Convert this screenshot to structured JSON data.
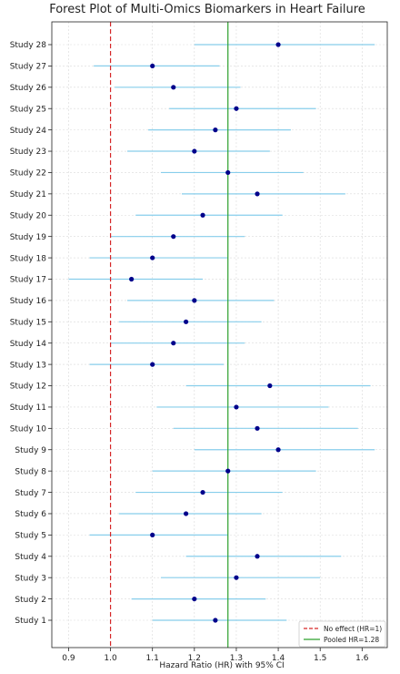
{
  "chart_data": {
    "type": "forest",
    "title": "Forest Plot of Multi-Omics Biomarkers in Heart Failure",
    "xlabel": "Hazard Ratio (HR) with 95% CI",
    "ylabel": "",
    "xlim": [
      0.86,
      1.66
    ],
    "xticks": [
      0.9,
      1.0,
      1.1,
      1.2,
      1.3,
      1.4,
      1.5,
      1.6
    ],
    "xtick_labels": [
      "0.9",
      "1.0",
      "1.1",
      "1.2",
      "1.3",
      "1.4",
      "1.5",
      "1.6"
    ],
    "grid": true,
    "legend_position": "bottom-right",
    "reference_lines": [
      {
        "label": "No effect (HR=1)",
        "x": 1.0,
        "style": "dashed",
        "color": "#d62728"
      },
      {
        "label": "Pooled HR=1.28",
        "x": 1.28,
        "style": "solid",
        "color": "#2ca02c"
      }
    ],
    "studies": [
      {
        "label": "Study 1",
        "hr": 1.25,
        "lower": 1.1,
        "upper": 1.42
      },
      {
        "label": "Study 2",
        "hr": 1.2,
        "lower": 1.05,
        "upper": 1.37
      },
      {
        "label": "Study 3",
        "hr": 1.3,
        "lower": 1.12,
        "upper": 1.5
      },
      {
        "label": "Study 4",
        "hr": 1.35,
        "lower": 1.18,
        "upper": 1.55
      },
      {
        "label": "Study 5",
        "hr": 1.1,
        "lower": 0.95,
        "upper": 1.28
      },
      {
        "label": "Study 6",
        "hr": 1.18,
        "lower": 1.02,
        "upper": 1.36
      },
      {
        "label": "Study 7",
        "hr": 1.22,
        "lower": 1.06,
        "upper": 1.41
      },
      {
        "label": "Study 8",
        "hr": 1.28,
        "lower": 1.1,
        "upper": 1.49
      },
      {
        "label": "Study 9",
        "hr": 1.4,
        "lower": 1.2,
        "upper": 1.63
      },
      {
        "label": "Study 10",
        "hr": 1.35,
        "lower": 1.15,
        "upper": 1.59
      },
      {
        "label": "Study 11",
        "hr": 1.3,
        "lower": 1.11,
        "upper": 1.52
      },
      {
        "label": "Study 12",
        "hr": 1.38,
        "lower": 1.18,
        "upper": 1.62
      },
      {
        "label": "Study 13",
        "hr": 1.1,
        "lower": 0.95,
        "upper": 1.27
      },
      {
        "label": "Study 14",
        "hr": 1.15,
        "lower": 1.0,
        "upper": 1.32
      },
      {
        "label": "Study 15",
        "hr": 1.18,
        "lower": 1.02,
        "upper": 1.36
      },
      {
        "label": "Study 16",
        "hr": 1.2,
        "lower": 1.04,
        "upper": 1.39
      },
      {
        "label": "Study 17",
        "hr": 1.05,
        "lower": 0.9,
        "upper": 1.22
      },
      {
        "label": "Study 18",
        "hr": 1.1,
        "lower": 0.95,
        "upper": 1.28
      },
      {
        "label": "Study 19",
        "hr": 1.15,
        "lower": 1.0,
        "upper": 1.32
      },
      {
        "label": "Study 20",
        "hr": 1.22,
        "lower": 1.06,
        "upper": 1.41
      },
      {
        "label": "Study 21",
        "hr": 1.35,
        "lower": 1.17,
        "upper": 1.56
      },
      {
        "label": "Study 22",
        "hr": 1.28,
        "lower": 1.12,
        "upper": 1.46
      },
      {
        "label": "Study 23",
        "hr": 1.2,
        "lower": 1.04,
        "upper": 1.38
      },
      {
        "label": "Study 24",
        "hr": 1.25,
        "lower": 1.09,
        "upper": 1.43
      },
      {
        "label": "Study 25",
        "hr": 1.3,
        "lower": 1.14,
        "upper": 1.49
      },
      {
        "label": "Study 26",
        "hr": 1.15,
        "lower": 1.01,
        "upper": 1.31
      },
      {
        "label": "Study 27",
        "hr": 1.1,
        "lower": 0.96,
        "upper": 1.26
      },
      {
        "label": "Study 28",
        "hr": 1.4,
        "lower": 1.2,
        "upper": 1.63
      }
    ],
    "colors": {
      "ci_line": "#87ceeb",
      "point": "#00008b",
      "no_effect": "#d62728",
      "pooled": "#2ca02c",
      "grid": "#d9d9d9"
    }
  }
}
